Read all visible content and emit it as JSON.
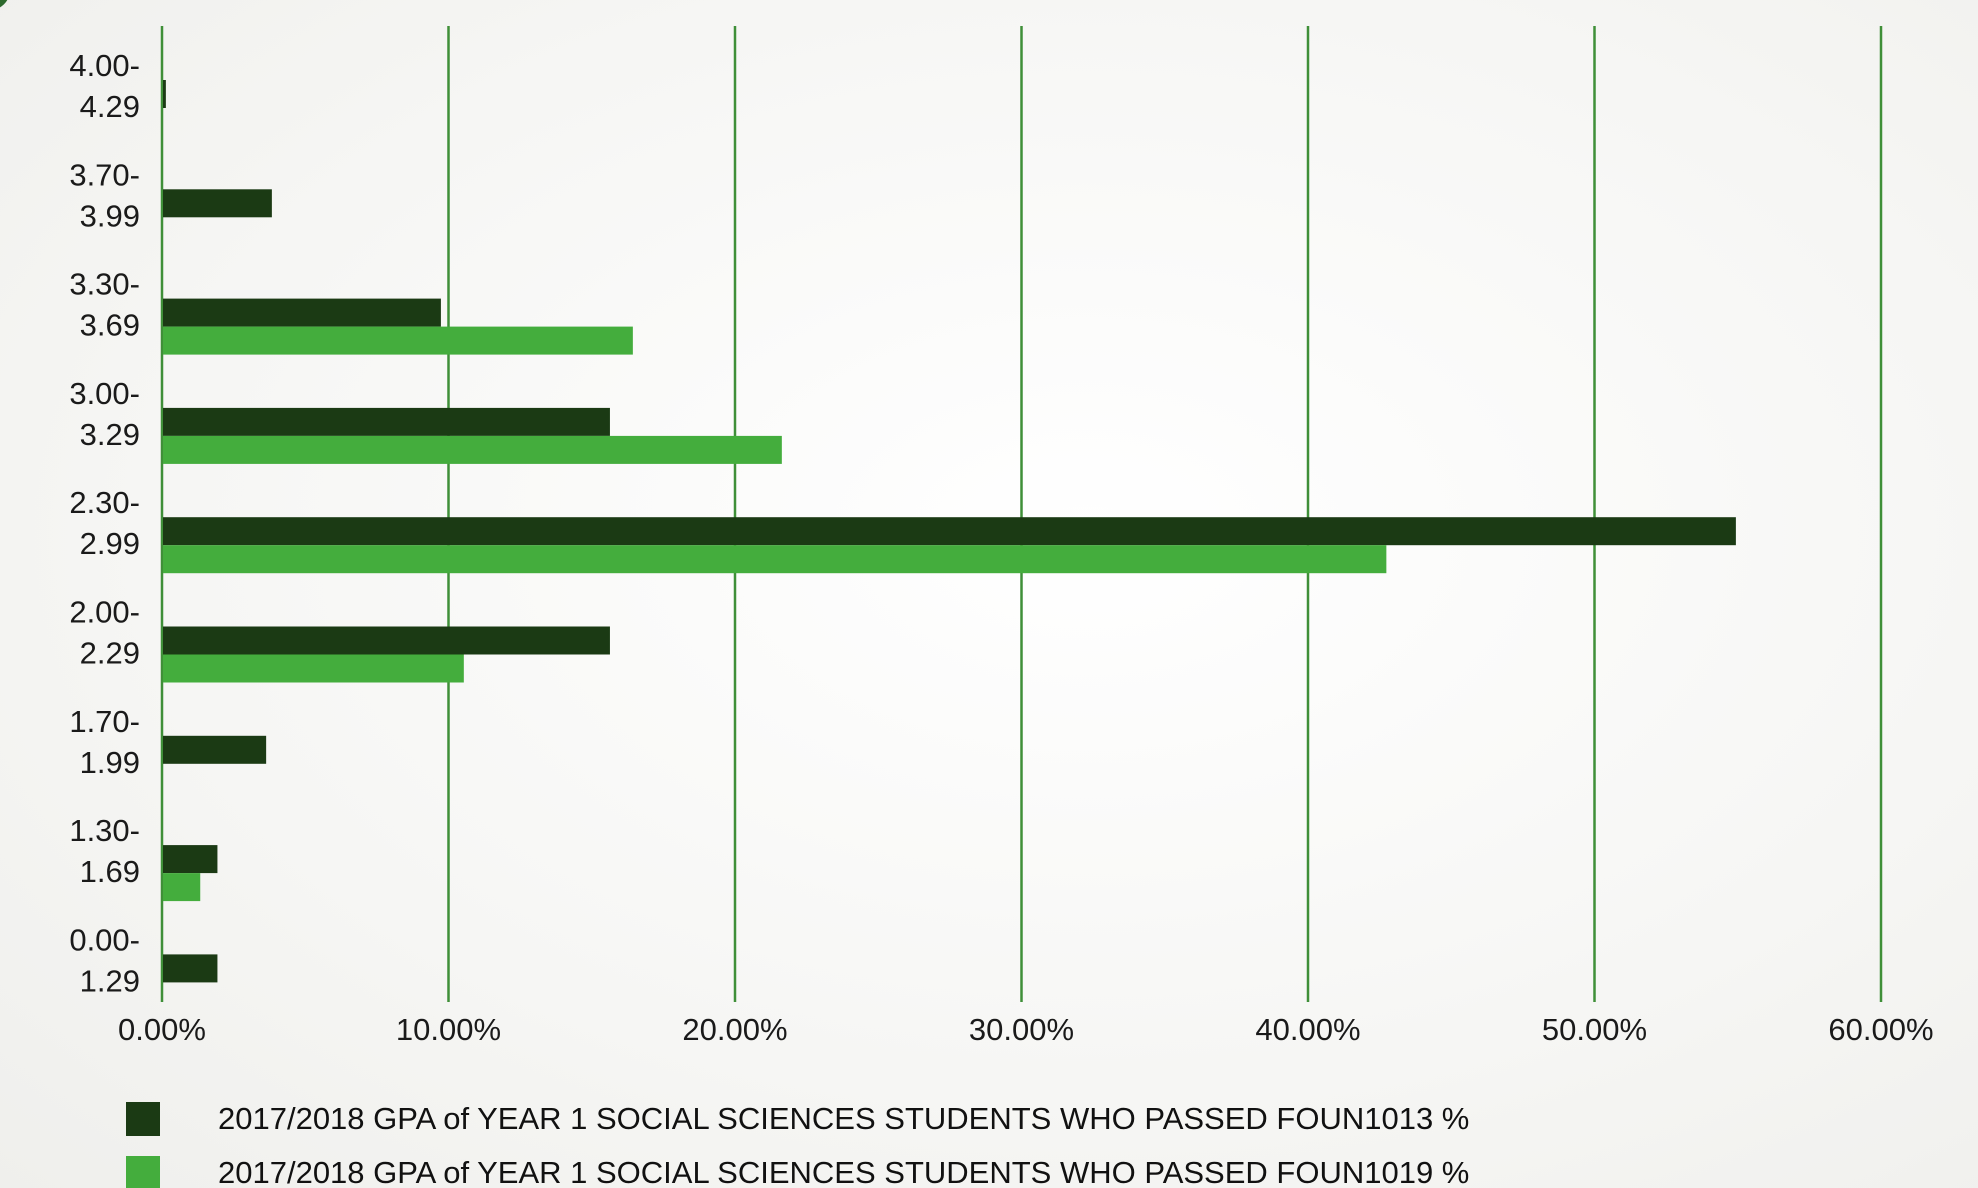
{
  "colors": {
    "series1": "#1b3a14",
    "series2": "#44ad3d",
    "gridline": "#3f8f38",
    "axis": "#3f8f38",
    "text": "#1a1a1a",
    "background": "#f8f8f6"
  },
  "chart_data": {
    "type": "bar",
    "orientation": "horizontal",
    "title": "",
    "xlabel": "",
    "ylabel": "",
    "categories": [
      [
        "4.00-",
        "4.29"
      ],
      [
        "3.70-",
        "3.99"
      ],
      [
        "3.30-",
        "3.69"
      ],
      [
        "3.00-",
        "3.29"
      ],
      [
        "2.30-",
        "2.99"
      ],
      [
        "2.00-",
        "2.29"
      ],
      [
        "1.70-",
        "1.99"
      ],
      [
        "1.30-",
        "1.69"
      ],
      [
        "0.00-",
        "1.29"
      ]
    ],
    "x_ticks": [
      "0.00%",
      "10.00%",
      "20.00%",
      "30.00%",
      "40.00%",
      "50.00%",
      "60.00%"
    ],
    "xlim": [
      0,
      60
    ],
    "grid": "vertical",
    "legend_position": "bottom",
    "series": [
      {
        "name": "2017/2018 GPA of YEAR 1 SOCIAL SCIENCES STUDENTS WHO PASSED FOUN1013 %",
        "values": [
          0.1,
          3.8,
          9.7,
          15.6,
          54.9,
          15.6,
          3.6,
          1.9,
          1.9
        ]
      },
      {
        "name": "2017/2018 GPA of YEAR 1 SOCIAL SCIENCES STUDENTS WHO PASSED FOUN1019 %",
        "values": [
          0,
          0,
          16.4,
          21.6,
          42.7,
          10.5,
          0,
          1.3,
          0
        ]
      }
    ]
  }
}
